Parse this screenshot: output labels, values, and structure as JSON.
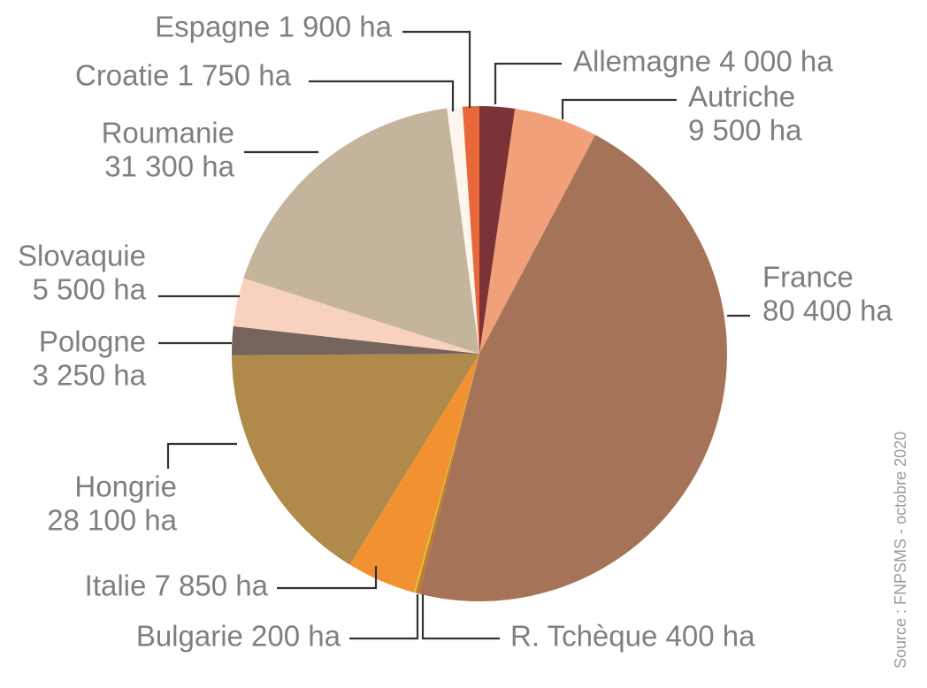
{
  "chart_data": {
    "type": "pie",
    "unit": "ha",
    "start_angle_deg": 0,
    "direction": "clockwise",
    "slices": [
      {
        "name": "Allemagne",
        "value": 4000,
        "label": "Allemagne 4 000 ha",
        "color": "#7b3337"
      },
      {
        "name": "Autriche",
        "value": 9500,
        "label": "Autriche 9 500 ha",
        "color": "#f2a07a"
      },
      {
        "name": "France",
        "value": 80400,
        "label": "France 80 400 ha",
        "color": "#a57458"
      },
      {
        "name": "R. Tchèque",
        "value": 400,
        "label": "R. Tchèque 400 ha",
        "color": "#c9762f"
      },
      {
        "name": "Bulgarie",
        "value": 200,
        "label": "Bulgarie 200 ha",
        "color": "#c8cc2e"
      },
      {
        "name": "Italie",
        "value": 7850,
        "label": "Italie 7 850 ha",
        "color": "#f29130"
      },
      {
        "name": "Hongrie",
        "value": 28100,
        "label": "Hongrie 28 100 ha",
        "color": "#b08a4a"
      },
      {
        "name": "Pologne",
        "value": 3250,
        "label": "Pologne 3 250 ha",
        "color": "#75645c"
      },
      {
        "name": "Slovaquie",
        "value": 5500,
        "label": "Slovaquie 5 500 ha",
        "color": "#f9d2bf"
      },
      {
        "name": "Roumanie",
        "value": 31300,
        "label": "Roumanie 31 300 ha",
        "color": "#c4b49c"
      },
      {
        "name": "Croatie",
        "value": 1750,
        "label": "Croatie 1 750 ha",
        "color": "#fdf6ee"
      },
      {
        "name": "Espagne",
        "value": 1900,
        "label": "Espagne 1 900 ha",
        "color": "#e8683a"
      }
    ],
    "source": "Source : FNPSMS - octobre 2020"
  }
}
